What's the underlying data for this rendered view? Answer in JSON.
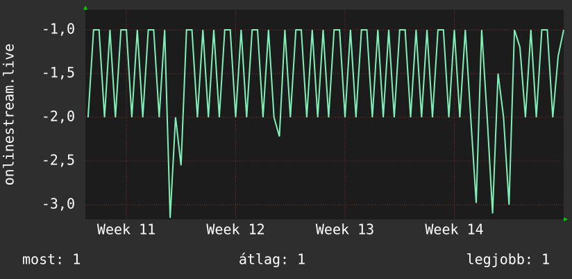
{
  "chart_data": {
    "type": "line",
    "y_label": "onlinestream.live",
    "x": [
      10.65,
      10.7,
      10.75,
      10.8,
      10.85,
      10.9,
      10.95,
      11.0,
      11.05,
      11.1,
      11.15,
      11.2,
      11.25,
      11.3,
      11.35,
      11.4,
      11.45,
      11.5,
      11.55,
      11.6,
      11.65,
      11.7,
      11.75,
      11.8,
      11.85,
      11.9,
      11.95,
      12.0,
      12.05,
      12.1,
      12.15,
      12.2,
      12.25,
      12.3,
      12.35,
      12.4,
      12.45,
      12.5,
      12.55,
      12.6,
      12.65,
      12.7,
      12.75,
      12.8,
      12.85,
      12.9,
      12.95,
      13.0,
      13.05,
      13.1,
      13.15,
      13.2,
      13.25,
      13.3,
      13.35,
      13.4,
      13.45,
      13.5,
      13.55,
      13.6,
      13.65,
      13.7,
      13.75,
      13.8,
      13.85,
      13.9,
      13.95,
      14.0,
      14.05,
      14.1,
      14.15,
      14.2,
      14.25,
      14.3,
      14.35,
      14.4,
      14.45,
      14.5,
      14.55,
      14.6,
      14.65,
      14.7,
      14.75,
      14.8,
      14.85,
      14.9,
      14.95,
      15.0
    ],
    "series": [
      {
        "name": "onlinestream.live",
        "color": "#80f0b8",
        "values": [
          -2,
          -1,
          -1,
          -2,
          -1,
          -2,
          -1,
          -1,
          -2,
          -1,
          -2,
          -1,
          -1,
          -2,
          -1,
          -3.15,
          -2,
          -2.55,
          -1,
          -1,
          -2,
          -1,
          -2,
          -1,
          -2,
          -1,
          -1,
          -2,
          -1,
          -2,
          -1,
          -1,
          -2,
          -1,
          -2,
          -2.22,
          -1,
          -2,
          -1,
          -1,
          -2,
          -1,
          -2,
          -1,
          -2,
          -1,
          -1,
          -2,
          -1,
          -2,
          -1,
          -1,
          -2,
          -1,
          -2,
          -1,
          -2,
          -1,
          -1,
          -2,
          -1,
          -2,
          -1,
          -2,
          -1,
          -1,
          -2,
          -1,
          -2,
          -1,
          -2,
          -2.98,
          -1,
          -2,
          -3.1,
          -1.5,
          -2,
          -3.0,
          -1,
          -1.2,
          -2,
          -1,
          -2,
          -1,
          -1,
          -2,
          -1.3,
          -1
        ]
      }
    ],
    "xlim": [
      10.625,
      15.0
    ],
    "ylim": [
      -3.167,
      -0.77
    ],
    "xticks": [
      {
        "value": 11,
        "label": "Week 11"
      },
      {
        "value": 12,
        "label": "Week 12"
      },
      {
        "value": 13,
        "label": "Week 13"
      },
      {
        "value": 14,
        "label": "Week 14"
      }
    ],
    "yticks": [
      {
        "value": -1,
        "label": "-1,0"
      },
      {
        "value": -1.5,
        "label": "-1,5"
      },
      {
        "value": -2,
        "label": "-2,0"
      },
      {
        "value": -2.5,
        "label": "-2,5"
      },
      {
        "value": -3,
        "label": "-3,0"
      }
    ],
    "grid": true,
    "footer": [
      "most: 1",
      "átlag: 1",
      "legjobb: 1"
    ]
  }
}
